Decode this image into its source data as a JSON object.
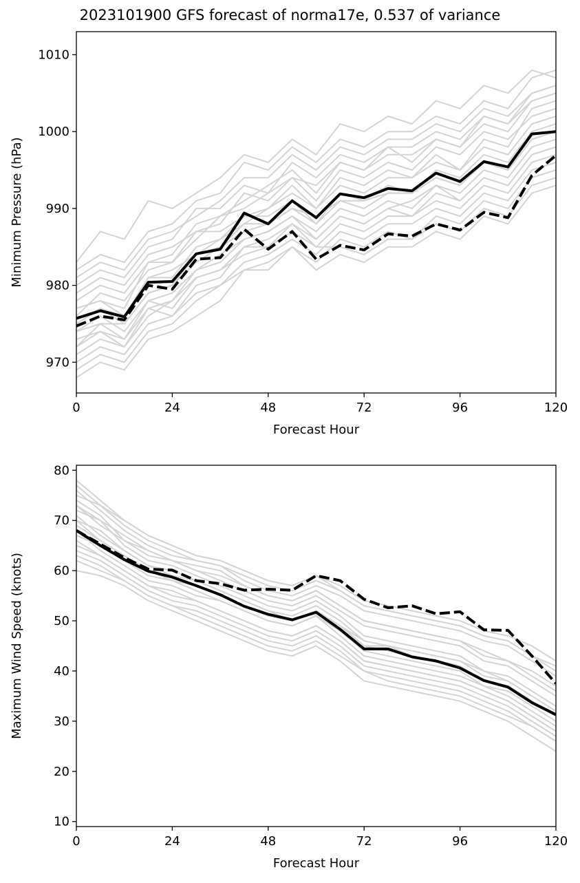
{
  "title": "2023101900 GFS forecast of norma17e, 0.537 of variance",
  "colors": {
    "ensemble": "#d3d3d3",
    "mean": "#000000",
    "axis": "#000000"
  },
  "chart_data": [
    {
      "type": "line",
      "xlabel": "Forecast Hour",
      "ylabel": "Minimum Pressure (hPa)",
      "xlim": [
        0,
        120
      ],
      "ylim": [
        966,
        1013
      ],
      "xticks": [
        0,
        24,
        48,
        72,
        96,
        120
      ],
      "yticks": [
        970,
        980,
        990,
        1000,
        1010
      ],
      "grid": false,
      "x": [
        0,
        6,
        12,
        18,
        24,
        30,
        36,
        42,
        48,
        54,
        60,
        66,
        72,
        78,
        84,
        90,
        96,
        102,
        108,
        114,
        120
      ],
      "series": [
        {
          "style": "solid",
          "values": [
            975.7,
            976.7,
            975.9,
            980.4,
            980.5,
            984.1,
            984.7,
            989.4,
            988.0,
            991.0,
            988.8,
            991.9,
            991.4,
            992.6,
            992.3,
            994.6,
            993.5,
            996.1,
            995.4,
            999.7,
            1000.0
          ]
        },
        {
          "style": "dashed",
          "values": [
            974.7,
            976.0,
            975.5,
            980.0,
            979.5,
            983.4,
            983.6,
            987.3,
            984.7,
            987.0,
            983.4,
            985.2,
            984.6,
            986.7,
            986.4,
            988.0,
            987.2,
            989.5,
            988.8,
            994.3,
            996.9
          ]
        }
      ],
      "ensemble": [
        [
          975,
          977,
          976,
          981,
          982,
          984,
          986,
          988,
          990,
          992,
          990,
          994,
          993,
          995,
          994,
          997,
          995,
          999,
          998,
          1003,
          1004
        ],
        [
          972,
          974,
          973,
          977,
          978,
          982,
          983,
          986,
          987,
          989,
          986,
          989,
          988,
          990,
          991,
          993,
          992,
          995,
          994,
          998,
          999
        ],
        [
          979,
          981,
          980,
          984,
          985,
          987,
          988,
          992,
          991,
          994,
          991,
          995,
          994,
          996,
          995,
          998,
          997,
          1000,
          999,
          1002,
          1003
        ],
        [
          970,
          972,
          971,
          975,
          976,
          979,
          980,
          983,
          984,
          986,
          984,
          987,
          986,
          988,
          988,
          990,
          989,
          992,
          991,
          995,
          996
        ],
        [
          983,
          987,
          986,
          991,
          990,
          992,
          994,
          997,
          996,
          999,
          997,
          1001,
          1000,
          1002,
          1001,
          1004,
          1003,
          1006,
          1005,
          1008,
          1007
        ],
        [
          968,
          970,
          969,
          973,
          974,
          976,
          978,
          982,
          982,
          985,
          983,
          986,
          985,
          987,
          986,
          989,
          988,
          991,
          990,
          994,
          995
        ],
        [
          977,
          978,
          977,
          983,
          983,
          986,
          989,
          990,
          992,
          994,
          993,
          996,
          995,
          997,
          997,
          999,
          998,
          1001,
          1000,
          1004,
          1005
        ],
        [
          974,
          975,
          975,
          979,
          980,
          983,
          985,
          987,
          988,
          990,
          989,
          991,
          991,
          992,
          992,
          994,
          993,
          996,
          995,
          999,
          1000
        ],
        [
          981,
          983,
          982,
          986,
          987,
          989,
          991,
          994,
          994,
          997,
          995,
          998,
          997,
          999,
          999,
          1001,
          1000,
          1003,
          1002,
          1005,
          1006
        ],
        [
          973,
          974,
          972,
          976,
          978,
          981,
          982,
          984,
          985,
          987,
          985,
          985,
          984,
          986,
          986,
          988,
          987,
          990,
          989,
          993,
          994
        ],
        [
          976,
          979,
          978,
          982,
          983,
          987,
          987,
          989,
          990,
          993,
          990,
          993,
          992,
          994,
          994,
          996,
          995,
          998,
          997,
          1001,
          1002
        ],
        [
          971,
          973,
          972,
          977,
          976,
          980,
          981,
          985,
          985,
          988,
          985,
          988,
          987,
          989,
          989,
          991,
          990,
          993,
          992,
          996,
          997
        ],
        [
          978,
          980,
          979,
          983,
          984,
          988,
          989,
          991,
          993,
          995,
          992,
          996,
          995,
          998,
          996,
          999,
          998,
          1002,
          1001,
          1004,
          1005
        ],
        [
          969,
          971,
          970,
          974,
          975,
          978,
          980,
          982,
          983,
          985,
          982,
          984,
          983,
          985,
          985,
          987,
          986,
          989,
          988,
          992,
          993
        ],
        [
          980,
          982,
          981,
          985,
          986,
          990,
          990,
          993,
          992,
          996,
          994,
          997,
          996,
          998,
          998,
          1000,
          999,
          1002,
          1001,
          1005,
          1006
        ],
        [
          974,
          976,
          974,
          978,
          979,
          982,
          984,
          986,
          987,
          989,
          987,
          990,
          989,
          991,
          990,
          993,
          991,
          994,
          993,
          997,
          998
        ],
        [
          977,
          978,
          976,
          981,
          981,
          985,
          986,
          989,
          989,
          991,
          988,
          991,
          990,
          992,
          992,
          994,
          993,
          996,
          995,
          999,
          1000
        ],
        [
          972,
          975,
          973,
          978,
          977,
          981,
          982,
          985,
          986,
          988,
          986,
          989,
          988,
          990,
          989,
          992,
          991,
          994,
          993,
          997,
          998
        ],
        [
          982,
          984,
          983,
          987,
          988,
          991,
          992,
          996,
          995,
          998,
          996,
          999,
          998,
          1000,
          1000,
          1002,
          1001,
          1004,
          1003,
          1007,
          1008
        ],
        [
          975,
          977,
          975,
          979,
          980,
          984,
          985,
          988,
          988,
          990,
          988,
          992,
          991,
          993,
          992,
          995,
          994,
          997,
          996,
          1000,
          1001
        ]
      ]
    },
    {
      "type": "line",
      "xlabel": "Forecast Hour",
      "ylabel": "Maximum Wind Speed (knots)",
      "xlim": [
        0,
        120
      ],
      "ylim": [
        9,
        81
      ],
      "xticks": [
        0,
        24,
        48,
        72,
        96,
        120
      ],
      "yticks": [
        10,
        20,
        30,
        40,
        50,
        60,
        70,
        80
      ],
      "grid": false,
      "x": [
        0,
        6,
        12,
        18,
        24,
        30,
        36,
        42,
        48,
        54,
        60,
        66,
        72,
        78,
        84,
        90,
        96,
        102,
        108,
        114,
        120
      ],
      "series": [
        {
          "style": "solid",
          "values": [
            68.0,
            65.0,
            62.2,
            59.9,
            58.7,
            57.0,
            55.2,
            52.9,
            51.3,
            50.2,
            51.7,
            48.3,
            44.4,
            44.4,
            42.8,
            42.0,
            40.6,
            38.1,
            36.8,
            33.7,
            31.3
          ]
        },
        {
          "style": "dashed",
          "values": [
            68.0,
            65.3,
            62.6,
            60.3,
            60.1,
            58.0,
            57.4,
            56.1,
            56.3,
            56.1,
            59.0,
            58.0,
            54.3,
            52.6,
            53.0,
            51.4,
            51.8,
            48.2,
            48.1,
            43.0,
            37.5
          ]
        }
      ],
      "ensemble": [
        [
          70,
          66,
          63,
          60,
          59,
          57,
          55,
          53,
          51,
          50,
          52,
          49,
          45,
          45,
          43,
          42,
          41,
          38,
          37,
          34,
          31
        ],
        [
          74,
          71,
          66,
          64,
          62,
          61,
          60,
          57,
          55,
          54,
          56,
          53,
          50,
          49,
          48,
          47,
          46,
          44,
          42,
          40,
          37
        ],
        [
          66,
          63,
          60,
          57,
          56,
          54,
          52,
          50,
          48,
          47,
          49,
          46,
          42,
          41,
          40,
          39,
          38,
          36,
          34,
          31,
          28
        ],
        [
          76,
          72,
          68,
          65,
          63,
          62,
          61,
          59,
          57,
          56,
          58,
          56,
          53,
          52,
          51,
          50,
          49,
          47,
          46,
          43,
          40
        ],
        [
          62,
          60,
          58,
          55,
          53,
          51,
          49,
          47,
          45,
          44,
          46,
          43,
          40,
          38,
          37,
          36,
          35,
          33,
          31,
          29,
          26
        ],
        [
          72,
          70,
          65,
          62,
          61,
          59,
          57,
          55,
          53,
          52,
          54,
          51,
          47,
          46,
          45,
          44,
          43,
          40,
          39,
          36,
          33
        ],
        [
          68,
          64,
          61,
          58,
          57,
          55,
          54,
          52,
          50,
          49,
          51,
          48,
          44,
          43,
          42,
          41,
          40,
          37,
          36,
          33,
          30
        ],
        [
          78,
          74,
          70,
          67,
          65,
          63,
          62,
          60,
          58,
          57,
          59,
          57,
          54,
          53,
          52,
          51,
          50,
          48,
          47,
          45,
          42
        ],
        [
          64,
          62,
          59,
          56,
          54,
          53,
          51,
          49,
          47,
          46,
          48,
          45,
          41,
          40,
          39,
          38,
          37,
          35,
          33,
          30,
          27
        ],
        [
          70,
          68,
          64,
          61,
          60,
          58,
          56,
          54,
          52,
          51,
          53,
          50,
          46,
          45,
          44,
          43,
          42,
          39,
          38,
          35,
          32
        ],
        [
          73,
          69,
          66,
          63,
          62,
          60,
          58,
          56,
          54,
          53,
          55,
          52,
          49,
          48,
          47,
          46,
          45,
          42,
          41,
          38,
          35
        ],
        [
          67,
          65,
          62,
          59,
          58,
          56,
          54,
          52,
          50,
          49,
          51,
          47,
          43,
          42,
          41,
          40,
          39,
          37,
          35,
          32,
          29
        ],
        [
          75,
          73,
          69,
          66,
          64,
          62,
          61,
          58,
          56,
          55,
          57,
          55,
          52,
          51,
          50,
          49,
          48,
          46,
          45,
          42,
          39
        ],
        [
          60,
          59,
          57,
          54,
          52,
          50,
          48,
          46,
          44,
          43,
          45,
          42,
          38,
          37,
          36,
          35,
          34,
          32,
          30,
          27,
          24
        ],
        [
          71,
          67,
          64,
          61,
          59,
          58,
          56,
          54,
          52,
          50,
          52,
          49,
          46,
          45,
          44,
          43,
          42,
          40,
          38,
          35,
          32
        ],
        [
          69,
          66,
          63,
          60,
          58,
          57,
          55,
          53,
          51,
          50,
          52,
          49,
          45,
          44,
          43,
          42,
          41,
          38,
          37,
          34,
          31
        ],
        [
          65,
          63,
          60,
          57,
          55,
          54,
          52,
          50,
          48,
          47,
          49,
          46,
          42,
          41,
          40,
          39,
          38,
          36,
          34,
          31,
          28
        ],
        [
          73,
          70,
          67,
          64,
          62,
          60,
          59,
          57,
          55,
          54,
          56,
          53,
          50,
          49,
          48,
          47,
          46,
          43,
          42,
          39,
          36
        ],
        [
          63,
          61,
          58,
          55,
          53,
          52,
          50,
          48,
          46,
          45,
          47,
          44,
          40,
          39,
          38,
          37,
          36,
          34,
          32,
          29,
          26
        ],
        [
          77,
          73,
          70,
          67,
          65,
          63,
          62,
          60,
          58,
          57,
          59,
          56,
          53,
          52,
          51,
          50,
          49,
          47,
          46,
          43,
          41
        ]
      ]
    }
  ]
}
